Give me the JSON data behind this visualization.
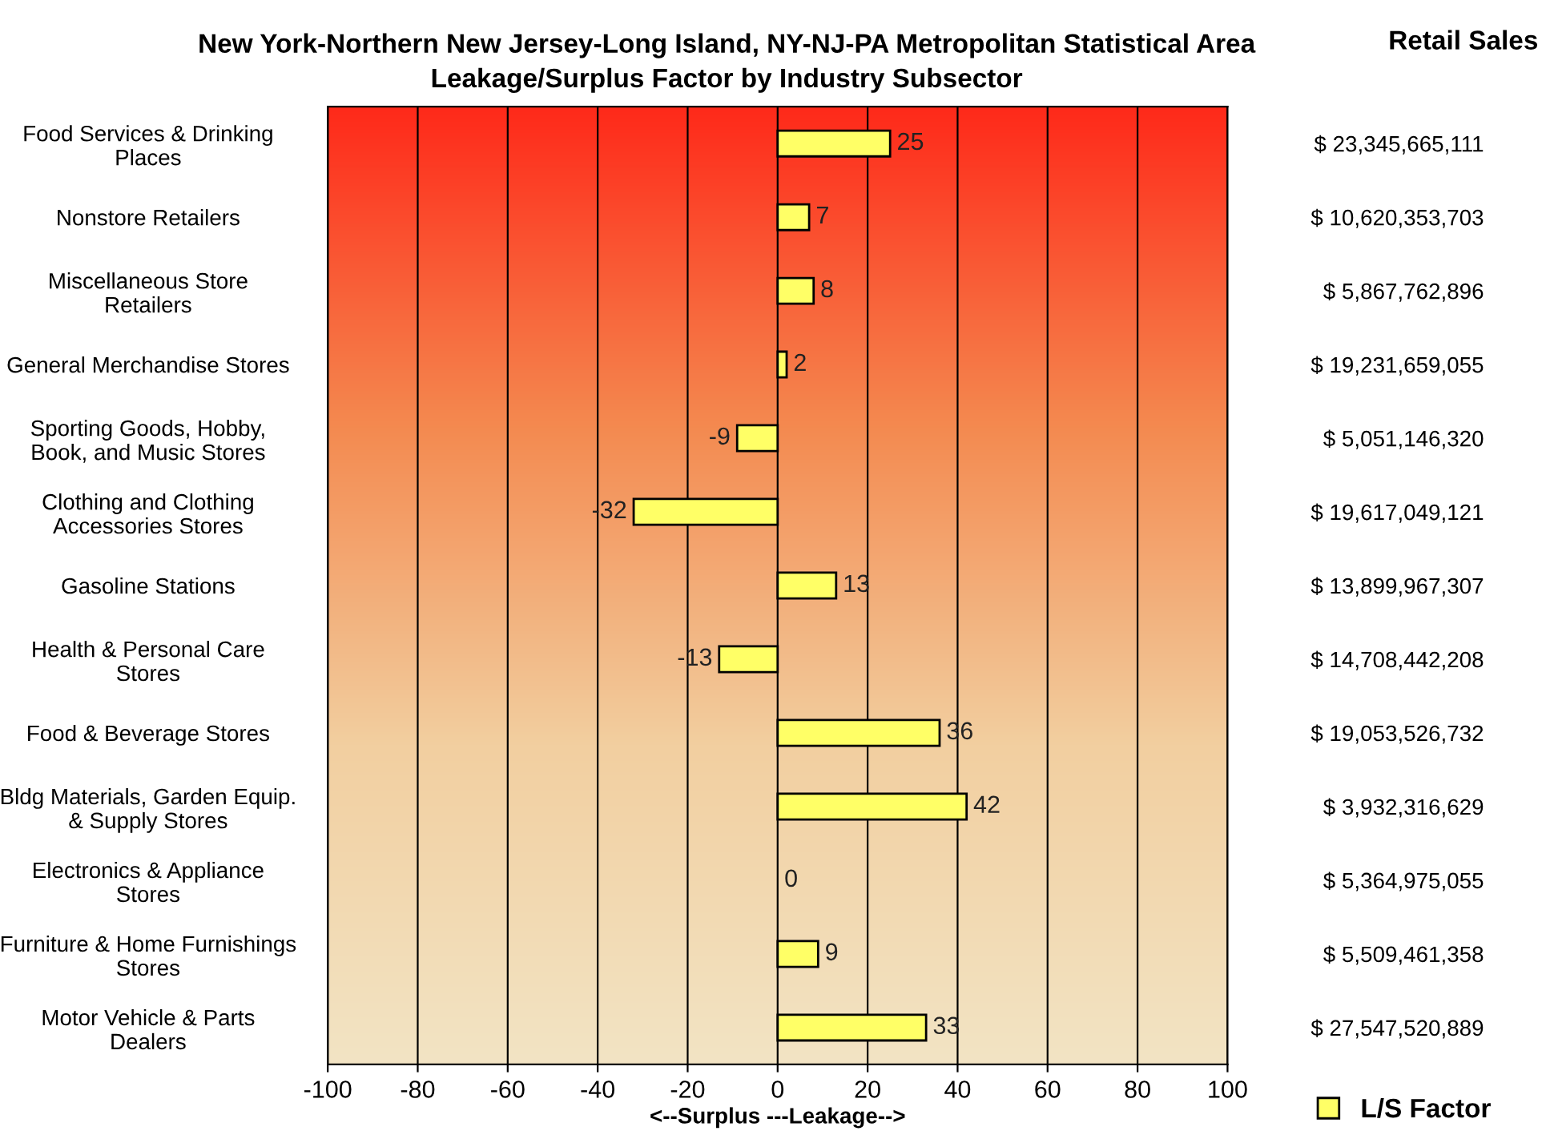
{
  "chart_data": {
    "type": "bar",
    "orientation": "horizontal",
    "title": "New York-Northern New Jersey-Long Island, NY-NJ-PA Metropolitan Statistical Area\nLeakage/Surplus Factor by Industry Subsector",
    "xlabel": "<--Surplus ---Leakage-->",
    "annotations": [
      "Retail Sales"
    ],
    "categories": [
      "Food Services & Drinking\nPlaces",
      "Nonstore Retailers",
      "Miscellaneous Store\nRetailers",
      "General Merchandise Stores",
      "Sporting Goods, Hobby,\nBook, and Music Stores",
      "Clothing and Clothing\nAccessories Stores",
      "Gasoline Stations",
      "Health & Personal Care\nStores",
      "Food & Beverage Stores",
      "Bldg Materials, Garden Equip.\n& Supply Stores",
      "Electronics & Appliance\nStores",
      "Furniture & Home Furnishings\nStores",
      "Motor Vehicle & Parts\nDealers"
    ],
    "y2_categories": [
      "$ 23,345,665,111",
      "$ 10,620,353,703",
      "$ 5,867,762,896",
      "$ 19,231,659,055",
      "$ 5,051,146,320",
      "$ 19,617,049,121",
      "$ 13,899,967,307",
      "$ 14,708,442,208",
      "$ 19,053,526,732",
      "$ 3,932,316,629",
      "$ 5,364,975,055",
      "$ 5,509,461,358",
      "$ 27,547,520,889"
    ],
    "series": [
      {
        "name": "L/S Factor",
        "color": "#ffff66",
        "values": [
          25,
          7,
          8,
          2,
          -9,
          -32,
          13,
          -13,
          36,
          42,
          0,
          9,
          33
        ]
      }
    ],
    "xlim": [
      -100,
      100
    ],
    "xticks": [
      -100,
      -80,
      -60,
      -40,
      -20,
      0,
      20,
      40,
      60,
      80,
      100
    ],
    "data_labels": true,
    "grid": "x",
    "legend": "bottom right"
  }
}
